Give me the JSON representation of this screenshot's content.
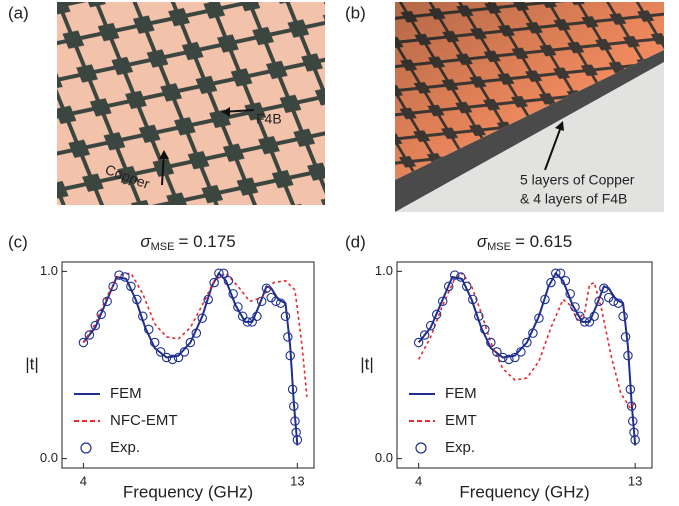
{
  "panels": {
    "a": {
      "label": "(a)",
      "annotations": [
        "F4B",
        "Copper"
      ]
    },
    "b": {
      "label": "(b)",
      "annotations": [
        "5 layers of Copper",
        "& 4 layers of F4B"
      ]
    }
  },
  "chart_data": [
    {
      "type": "line",
      "panel_label": "(c)",
      "title_symbol": "σ",
      "title_subscript": "MSE",
      "title_value": "= 0.175",
      "x_label": "Frequency (GHz)",
      "y_label": "|t|",
      "xlim": [
        3.1,
        13.7
      ],
      "ylim": [
        -0.05,
        1.05
      ],
      "xticks": [
        4,
        13
      ],
      "yticks": [
        {
          "value": 0,
          "label": "0.0"
        },
        {
          "value": 1,
          "label": "1.0"
        }
      ],
      "legend": "lower-left",
      "series": [
        {
          "name": "FEM",
          "color": "#1f2f8f",
          "style": "solid",
          "x": [
            4.0,
            4.5,
            5.0,
            5.4,
            5.8,
            6.2,
            6.6,
            7.0,
            7.5,
            8.0,
            8.5,
            9.0,
            9.4,
            9.7,
            10.0,
            10.4,
            10.8,
            11.1,
            11.4,
            11.7,
            11.9,
            12.2,
            12.5,
            12.7,
            12.85,
            13.0
          ],
          "values": [
            0.62,
            0.7,
            0.85,
            0.97,
            0.96,
            0.85,
            0.7,
            0.59,
            0.54,
            0.55,
            0.62,
            0.76,
            0.92,
            0.99,
            0.95,
            0.82,
            0.73,
            0.73,
            0.82,
            0.92,
            0.91,
            0.85,
            0.83,
            0.6,
            0.3,
            0.07
          ]
        },
        {
          "name": "NFC-EMT",
          "color": "#e8282a",
          "style": "dashed",
          "x": [
            4.0,
            4.5,
            5.0,
            5.5,
            6.0,
            6.5,
            7.0,
            7.5,
            8.0,
            8.5,
            9.0,
            9.5,
            10.0,
            10.5,
            11.0,
            11.5,
            12.0,
            12.5,
            12.9,
            13.2,
            13.4
          ],
          "values": [
            0.62,
            0.72,
            0.87,
            0.98,
            0.99,
            0.88,
            0.72,
            0.65,
            0.64,
            0.7,
            0.82,
            0.95,
            0.99,
            0.92,
            0.84,
            0.86,
            0.94,
            0.95,
            0.9,
            0.6,
            0.33
          ]
        },
        {
          "name": "Exp.",
          "color": "#1f2f8f",
          "style": "markers",
          "x": [
            4.0,
            4.25,
            4.5,
            4.75,
            5.0,
            5.25,
            5.5,
            5.75,
            6.0,
            6.25,
            6.5,
            6.75,
            7.0,
            7.25,
            7.5,
            7.75,
            8.0,
            8.25,
            8.5,
            8.75,
            9.0,
            9.25,
            9.5,
            9.7,
            9.9,
            10.1,
            10.3,
            10.5,
            10.7,
            10.9,
            11.1,
            11.3,
            11.5,
            11.7,
            11.9,
            12.1,
            12.3,
            12.5,
            12.6,
            12.7,
            12.8,
            12.85,
            12.9,
            12.95,
            13.0
          ],
          "values": [
            0.62,
            0.66,
            0.71,
            0.77,
            0.84,
            0.92,
            0.98,
            0.97,
            0.92,
            0.85,
            0.76,
            0.69,
            0.62,
            0.57,
            0.54,
            0.53,
            0.54,
            0.57,
            0.62,
            0.67,
            0.75,
            0.85,
            0.94,
            0.99,
            0.99,
            0.95,
            0.88,
            0.81,
            0.76,
            0.73,
            0.73,
            0.76,
            0.84,
            0.91,
            0.86,
            0.84,
            0.83,
            0.76,
            0.65,
            0.55,
            0.37,
            0.28,
            0.2,
            0.14,
            0.1
          ]
        }
      ]
    },
    {
      "type": "line",
      "panel_label": "(d)",
      "title_symbol": "σ",
      "title_subscript": "MSE",
      "title_value": "= 0.615",
      "x_label": "Frequency (GHz)",
      "y_label": "|t|",
      "xlim": [
        3.1,
        13.7
      ],
      "ylim": [
        -0.05,
        1.05
      ],
      "xticks": [
        4,
        13
      ],
      "yticks": [
        {
          "value": 0,
          "label": "0.0"
        },
        {
          "value": 1,
          "label": "1.0"
        }
      ],
      "legend": "lower-left",
      "series": [
        {
          "name": "FEM",
          "color": "#1f2f8f",
          "style": "solid",
          "x": [
            4.0,
            4.5,
            5.0,
            5.4,
            5.8,
            6.2,
            6.6,
            7.0,
            7.5,
            8.0,
            8.5,
            9.0,
            9.4,
            9.7,
            10.0,
            10.4,
            10.8,
            11.1,
            11.4,
            11.7,
            11.9,
            12.2,
            12.5,
            12.7,
            12.85,
            13.0
          ],
          "values": [
            0.62,
            0.7,
            0.85,
            0.97,
            0.96,
            0.85,
            0.7,
            0.59,
            0.54,
            0.55,
            0.62,
            0.76,
            0.92,
            0.99,
            0.95,
            0.82,
            0.73,
            0.73,
            0.82,
            0.92,
            0.91,
            0.85,
            0.83,
            0.6,
            0.3,
            0.07
          ]
        },
        {
          "name": "EMT",
          "color": "#e8282a",
          "style": "dashed",
          "x": [
            4.0,
            4.5,
            5.0,
            5.5,
            5.8,
            6.2,
            6.6,
            7.0,
            7.5,
            8.0,
            8.5,
            9.0,
            9.5,
            10.0,
            10.3,
            10.6,
            10.9,
            11.1,
            11.3,
            11.6,
            12.0,
            12.4,
            12.8,
            13.0
          ],
          "values": [
            0.53,
            0.65,
            0.82,
            0.96,
            0.99,
            0.92,
            0.78,
            0.62,
            0.48,
            0.42,
            0.43,
            0.52,
            0.7,
            0.85,
            0.82,
            0.74,
            0.78,
            0.93,
            0.94,
            0.8,
            0.55,
            0.35,
            0.27,
            0.3
          ]
        },
        {
          "name": "Exp.",
          "color": "#1f2f8f",
          "style": "markers",
          "x": [
            4.0,
            4.25,
            4.5,
            4.75,
            5.0,
            5.25,
            5.5,
            5.75,
            6.0,
            6.25,
            6.5,
            6.75,
            7.0,
            7.25,
            7.5,
            7.75,
            8.0,
            8.25,
            8.5,
            8.75,
            9.0,
            9.25,
            9.5,
            9.7,
            9.9,
            10.1,
            10.3,
            10.5,
            10.7,
            10.9,
            11.1,
            11.3,
            11.5,
            11.7,
            11.9,
            12.1,
            12.3,
            12.5,
            12.6,
            12.7,
            12.8,
            12.85,
            12.9,
            12.95,
            13.0
          ],
          "values": [
            0.62,
            0.66,
            0.71,
            0.77,
            0.84,
            0.92,
            0.98,
            0.97,
            0.92,
            0.85,
            0.76,
            0.69,
            0.62,
            0.57,
            0.54,
            0.53,
            0.54,
            0.57,
            0.62,
            0.67,
            0.75,
            0.85,
            0.94,
            0.99,
            0.99,
            0.95,
            0.88,
            0.81,
            0.76,
            0.73,
            0.73,
            0.76,
            0.84,
            0.91,
            0.86,
            0.84,
            0.83,
            0.76,
            0.65,
            0.55,
            0.37,
            0.28,
            0.2,
            0.14,
            0.1
          ]
        }
      ]
    }
  ]
}
